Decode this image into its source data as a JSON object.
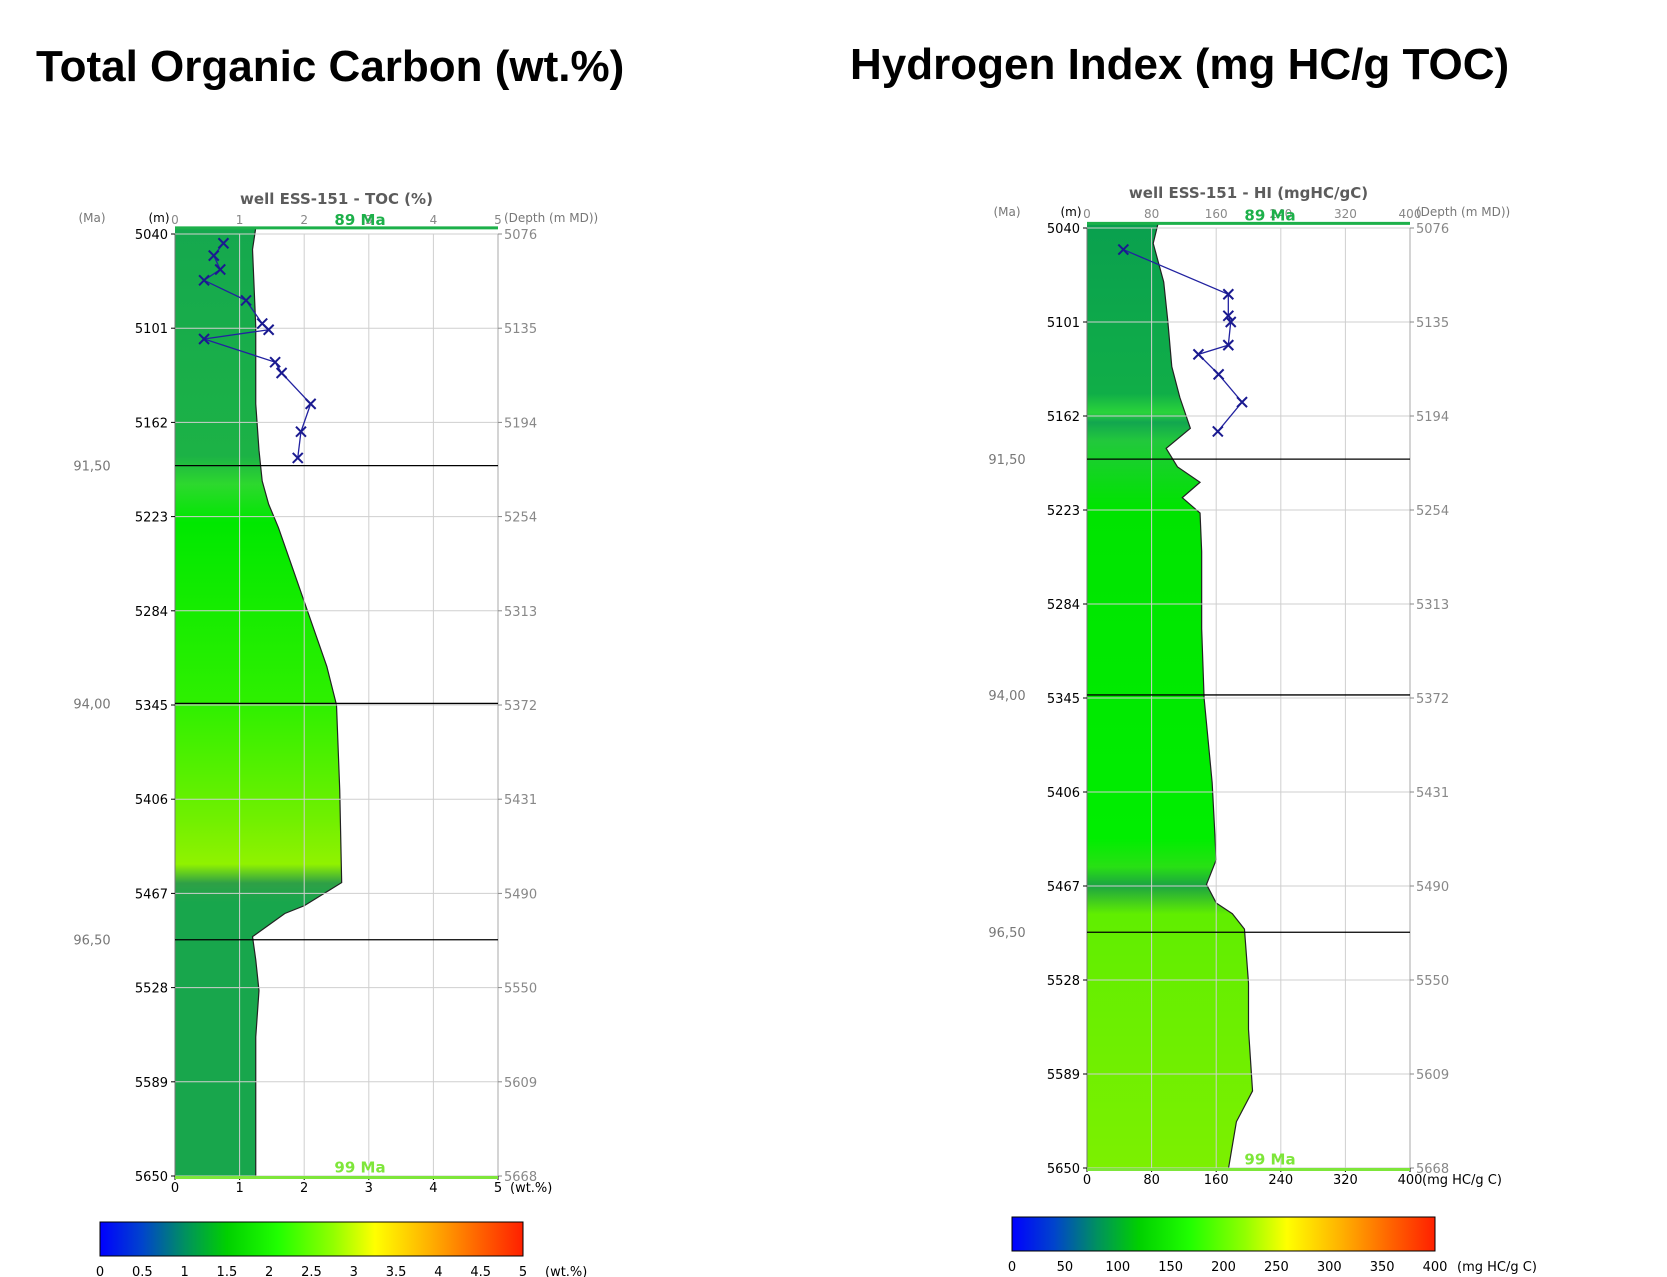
{
  "panels": {
    "toc": {
      "heading": "Total Organic Carbon (wt.%)"
    },
    "hi": {
      "heading": "Hydrogen Index (mg HC/g TOC)"
    }
  },
  "chart_data": [
    {
      "type": "line",
      "title": "well ESS-151 - TOC (%)",
      "age_axis_label": "(Ma)",
      "left_axis_label": "(m)",
      "right_axis_label": "(Depth (m MD))",
      "x_unit_label": "(wt.%)",
      "xlim": [
        0,
        5
      ],
      "ylim": [
        5040,
        5650
      ],
      "x_ticks": [
        "0",
        "1",
        "2",
        "3",
        "4",
        "5"
      ],
      "left_ticks": [
        5040,
        5101,
        5162,
        5223,
        5284,
        5345,
        5406,
        5467,
        5528,
        5589,
        5650
      ],
      "right_ticks": [
        "5076",
        "5135",
        "5194",
        "5254",
        "5313",
        "5372",
        "5431",
        "5490",
        "5550",
        "5609",
        "5668"
      ],
      "age_lines": [
        {
          "depth": 5190,
          "label": "91,50"
        },
        {
          "depth": 5344,
          "label": "94,00"
        },
        {
          "depth": 5497,
          "label": "96,50"
        }
      ],
      "top_marker": {
        "depth": 5036,
        "label": "89 Ma",
        "color": "#1db04a"
      },
      "bottom_marker": {
        "depth": 5651,
        "label": "99 Ma",
        "color": "#7ee63a"
      },
      "grid": true,
      "modeled_profile": {
        "depth": [
          5036,
          5050,
          5100,
          5150,
          5180,
          5200,
          5215,
          5230,
          5260,
          5290,
          5320,
          5345,
          5400,
          5460,
          5475,
          5480,
          5495,
          5510,
          5530,
          5560,
          5600,
          5651
        ],
        "value": [
          1.25,
          1.2,
          1.25,
          1.25,
          1.3,
          1.35,
          1.45,
          1.6,
          1.85,
          2.1,
          2.35,
          2.5,
          2.55,
          2.58,
          2.0,
          1.7,
          1.2,
          1.25,
          1.3,
          1.25,
          1.25,
          1.25
        ]
      },
      "measured": {
        "depth": [
          5046,
          5054,
          5063,
          5070,
          5083,
          5098,
          5102,
          5108,
          5123,
          5130,
          5150,
          5168,
          5185
        ],
        "value": [
          0.75,
          0.6,
          0.7,
          0.45,
          1.1,
          1.35,
          1.45,
          0.45,
          1.55,
          1.65,
          2.1,
          1.95,
          1.9
        ]
      },
      "colorbar": {
        "range": [
          0,
          5
        ],
        "ticks": [
          "0",
          "0.5",
          "1",
          "1.5",
          "2",
          "2.5",
          "3",
          "3.5",
          "4",
          "4.5",
          "5"
        ],
        "unit": "(wt.%)"
      }
    },
    {
      "type": "line",
      "title": "well ESS-151 - HI (mgHC/gC)",
      "age_axis_label": "(Ma)",
      "left_axis_label": "(m)",
      "right_axis_label": "(Depth (m MD))",
      "x_unit_label": "(mg HC/g C)",
      "xlim": [
        0,
        400
      ],
      "ylim": [
        5040,
        5650
      ],
      "x_ticks": [
        "0",
        "80",
        "160",
        "240",
        "320",
        "400"
      ],
      "left_ticks": [
        5040,
        5101,
        5162,
        5223,
        5284,
        5345,
        5406,
        5467,
        5528,
        5589,
        5650
      ],
      "right_ticks": [
        "5076",
        "5135",
        "5194",
        "5254",
        "5313",
        "5372",
        "5431",
        "5490",
        "5550",
        "5609",
        "5668"
      ],
      "age_lines": [
        {
          "depth": 5190,
          "label": "91,50"
        },
        {
          "depth": 5343,
          "label": "94,00"
        },
        {
          "depth": 5497,
          "label": "96,50"
        }
      ],
      "top_marker": {
        "depth": 5037,
        "label": "89 Ma",
        "color": "#1db04a"
      },
      "bottom_marker": {
        "depth": 5651,
        "label": "99 Ma",
        "color": "#7ee63a"
      },
      "grid": true,
      "modeled_profile": {
        "depth": [
          5037,
          5050,
          5075,
          5100,
          5130,
          5150,
          5170,
          5183,
          5195,
          5205,
          5215,
          5225,
          5250,
          5300,
          5345,
          5400,
          5450,
          5466,
          5478,
          5485,
          5495,
          5530,
          5560,
          5600,
          5620,
          5651
        ],
        "value": [
          88,
          82,
          95,
          100,
          105,
          115,
          128,
          98,
          112,
          140,
          118,
          140,
          142,
          142,
          145,
          155,
          160,
          148,
          160,
          180,
          195,
          200,
          200,
          205,
          185,
          175
        ]
      },
      "measured": {
        "depth": [
          5054,
          5083,
          5097,
          5101,
          5116,
          5122,
          5135,
          5153,
          5172
        ],
        "value": [
          45,
          175,
          175,
          178,
          175,
          138,
          163,
          192,
          162
        ]
      },
      "colorbar": {
        "range": [
          0,
          400
        ],
        "ticks": [
          "0",
          "50",
          "100",
          "150",
          "200",
          "250",
          "300",
          "350",
          "400"
        ],
        "unit": "(mg HC/g C)"
      }
    }
  ]
}
